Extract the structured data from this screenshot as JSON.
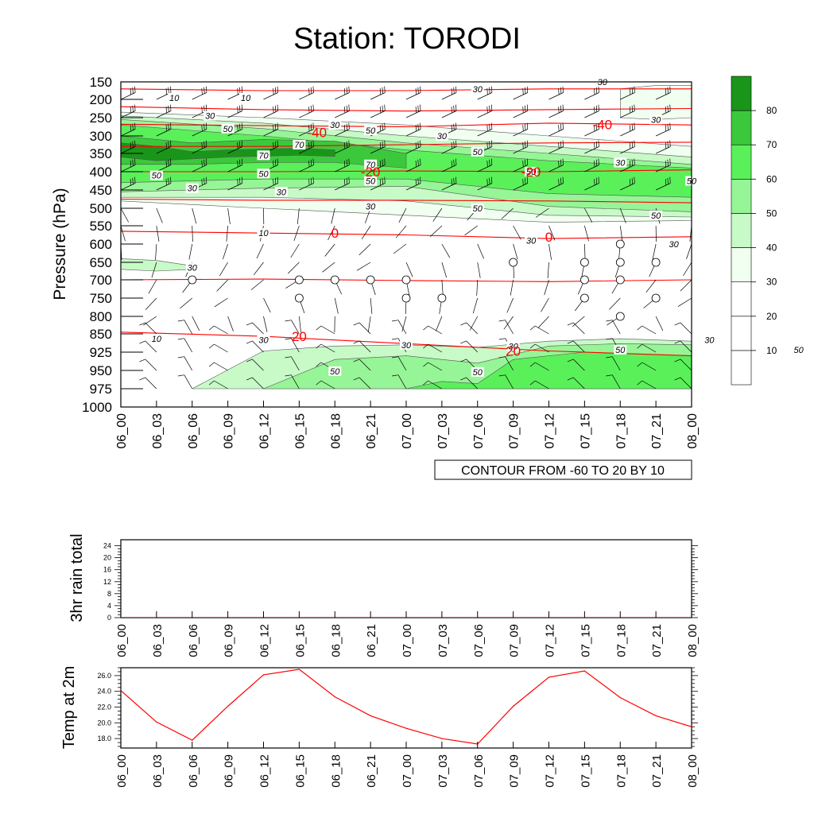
{
  "title": "Station: TORODI",
  "colors": {
    "temp_contour": "#ff0000",
    "rh_shades": [
      "#ffffff",
      "#ffffff",
      "#ffffff",
      "#f0fff0",
      "#c8fac8",
      "#96f596",
      "#5af05a",
      "#3cc83c",
      "#199619"
    ]
  },
  "time_labels": [
    "06_00",
    "06_03",
    "06_06",
    "06_09",
    "06_12",
    "06_15",
    "06_18",
    "06_21",
    "07_00",
    "07_03",
    "07_06",
    "07_09",
    "07_12",
    "07_15",
    "07_18",
    "07_21",
    "08_00"
  ],
  "chart_data": [
    {
      "type": "heatmap",
      "name": "pressure-time cross section",
      "ylabel": "Pressure (hPa)",
      "xlabel": "",
      "y_ticks": [
        150,
        200,
        250,
        300,
        350,
        400,
        450,
        500,
        550,
        600,
        650,
        700,
        750,
        800,
        850,
        925,
        950,
        975,
        1000
      ],
      "y_lim": [
        1000,
        150
      ],
      "x_categories_ref": "time_labels",
      "contour_info": "CONTOUR FROM -60 TO 20 BY 10",
      "colorbar": {
        "levels": [
          10,
          20,
          30,
          40,
          50,
          60,
          70,
          80
        ],
        "labels": [
          "10",
          "20",
          "30",
          "40",
          "50",
          "60",
          "70",
          "80"
        ]
      },
      "rh_contour_labels": [
        {
          "t": 1.5,
          "p": 195,
          "v": "10"
        },
        {
          "t": 3.5,
          "p": 195,
          "v": "10"
        },
        {
          "t": 2.5,
          "p": 245,
          "v": "30"
        },
        {
          "t": 3,
          "p": 280,
          "v": "50"
        },
        {
          "t": 6,
          "p": 270,
          "v": "30"
        },
        {
          "t": 7,
          "p": 285,
          "v": "50"
        },
        {
          "t": 5,
          "p": 325,
          "v": "70"
        },
        {
          "t": 4,
          "p": 355,
          "v": "70"
        },
        {
          "t": 7,
          "p": 380,
          "v": "70"
        },
        {
          "t": 9,
          "p": 300,
          "v": "30"
        },
        {
          "t": 10,
          "p": 345,
          "v": "50"
        },
        {
          "t": 11.5,
          "p": 400,
          "v": "50"
        },
        {
          "t": 14,
          "p": 375,
          "v": "30"
        },
        {
          "t": 15,
          "p": 255,
          "v": "30"
        },
        {
          "t": 13.5,
          "p": 135,
          "v": "30"
        },
        {
          "t": 10,
          "p": 170,
          "v": "30"
        },
        {
          "t": 17.5,
          "p": 370,
          "v": "30"
        },
        {
          "t": 1,
          "p": 410,
          "v": "50"
        },
        {
          "t": 4,
          "p": 405,
          "v": "50"
        },
        {
          "t": 7,
          "p": 425,
          "v": "50"
        },
        {
          "t": 2,
          "p": 445,
          "v": "30"
        },
        {
          "t": 4.5,
          "p": 455,
          "v": "30"
        },
        {
          "t": 7,
          "p": 495,
          "v": "30"
        },
        {
          "t": 10,
          "p": 500,
          "v": "50"
        },
        {
          "t": 16,
          "p": 425,
          "v": "50"
        },
        {
          "t": 15,
          "p": 520,
          "v": "50"
        },
        {
          "t": 4,
          "p": 570,
          "v": "10"
        },
        {
          "t": 11.5,
          "p": 590,
          "v": "30"
        },
        {
          "t": 15.5,
          "p": 600,
          "v": "30"
        },
        {
          "t": 2,
          "p": 665,
          "v": "30"
        },
        {
          "t": 1,
          "p": 870,
          "v": "10"
        },
        {
          "t": 4,
          "p": 875,
          "v": "30"
        },
        {
          "t": 8,
          "p": 895,
          "v": "30"
        },
        {
          "t": 11,
          "p": 900,
          "v": "30"
        },
        {
          "t": 14,
          "p": 915,
          "v": "50"
        },
        {
          "t": 16.5,
          "p": 875,
          "v": "30"
        },
        {
          "t": 19,
          "p": 915,
          "v": "50"
        },
        {
          "t": 6,
          "p": 951,
          "v": "50"
        },
        {
          "t": 10,
          "p": 952,
          "v": "50"
        }
      ],
      "temp_contour_labels": [
        {
          "t": 5.5,
          "p": 290,
          "v": "-40"
        },
        {
          "t": 13.5,
          "p": 268,
          "v": "-40"
        },
        {
          "t": 7,
          "p": 400,
          "v": "-20"
        },
        {
          "t": 11.5,
          "p": 400,
          "v": "-20"
        },
        {
          "t": 6,
          "p": 570,
          "v": "0"
        },
        {
          "t": 12,
          "p": 580,
          "v": "0"
        },
        {
          "t": 5,
          "p": 860,
          "v": "20"
        },
        {
          "t": 11,
          "p": 920,
          "v": "20"
        }
      ],
      "calm_markers": [
        {
          "t": 2,
          "p": 700
        },
        {
          "t": 5,
          "p": 700
        },
        {
          "t": 6,
          "p": 700
        },
        {
          "t": 7,
          "p": 700
        },
        {
          "t": 8,
          "p": 700
        },
        {
          "t": 5,
          "p": 750
        },
        {
          "t": 8,
          "p": 750
        },
        {
          "t": 9,
          "p": 750
        },
        {
          "t": 11,
          "p": 650
        },
        {
          "t": 13,
          "p": 650
        },
        {
          "t": 14,
          "p": 650
        },
        {
          "t": 15,
          "p": 650
        },
        {
          "t": 13,
          "p": 700
        },
        {
          "t": 14,
          "p": 700
        },
        {
          "t": 13,
          "p": 750
        },
        {
          "t": 15,
          "p": 750
        },
        {
          "t": 14,
          "p": 800
        },
        {
          "t": 14,
          "p": 600
        }
      ]
    },
    {
      "type": "line",
      "name": "3hr rain total",
      "ylabel": "3hr rain total",
      "y_ticks": [
        0,
        4,
        8,
        12,
        16,
        20,
        24
      ],
      "ylim": [
        0,
        26
      ],
      "x_categories_ref": "time_labels",
      "series": [
        {
          "values": [
            0,
            0,
            0,
            0,
            0,
            0,
            0,
            0,
            0,
            0,
            0,
            0,
            0,
            0,
            0,
            0,
            0
          ]
        }
      ]
    },
    {
      "type": "line",
      "name": "Temp at 2m",
      "ylabel": "Temp at 2m",
      "y_ticks": [
        "18.0",
        "20.0",
        "22.0",
        "24.0",
        "26.0"
      ],
      "ylim": [
        16.8,
        27.0
      ],
      "x_categories_ref": "time_labels",
      "series": [
        {
          "values": [
            24.1,
            20.1,
            17.8,
            22.1,
            26.1,
            26.8,
            23.3,
            20.9,
            19.3,
            18.0,
            17.3,
            22.1,
            25.8,
            26.6,
            23.2,
            20.9,
            19.5
          ]
        }
      ]
    }
  ]
}
